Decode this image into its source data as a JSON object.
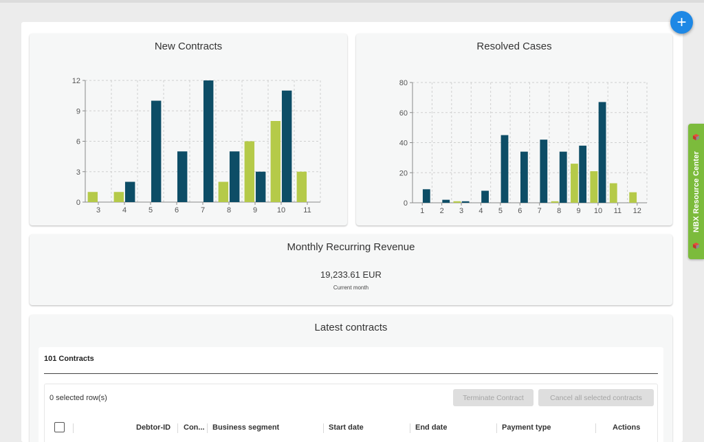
{
  "colors": {
    "dark_bar": "#0d4d66",
    "light_bar": "#b5ca49",
    "fab": "#1e88e5",
    "resource_tab": "#7cbb3c"
  },
  "fab": {
    "icon": "plus-icon",
    "symbol": "+"
  },
  "resource_center": {
    "label": "NBX Resource Center",
    "icon": "cube-icon"
  },
  "charts": [
    {
      "id": "new-contracts",
      "title": "New Contracts",
      "type": "bar",
      "x_ticks": [
        3,
        4,
        5,
        6,
        7,
        8,
        9,
        10,
        11
      ],
      "y_ticks": [
        0,
        3,
        6,
        9,
        12
      ],
      "ylim": [
        0,
        12
      ],
      "series": [
        {
          "color": "#b5ca49",
          "values": [
            1,
            1,
            0,
            0,
            0,
            2,
            6,
            8,
            3
          ]
        },
        {
          "color": "#0d4d66",
          "values": [
            0,
            2,
            10,
            5,
            12,
            5,
            3,
            11,
            0
          ]
        }
      ]
    },
    {
      "id": "resolved-cases",
      "title": "Resolved Cases",
      "type": "bar",
      "x_ticks": [
        1,
        2,
        3,
        4,
        5,
        6,
        7,
        8,
        9,
        10,
        11,
        12
      ],
      "y_ticks": [
        0,
        20,
        40,
        60,
        80
      ],
      "ylim": [
        0,
        80
      ],
      "series": [
        {
          "color": "#b5ca49",
          "values": [
            0,
            0,
            1,
            0,
            0,
            0,
            0,
            1,
            26,
            21,
            13,
            7
          ]
        },
        {
          "color": "#0d4d66",
          "values": [
            9,
            2,
            1,
            8,
            45,
            34,
            42,
            34,
            38,
            67,
            0,
            0
          ]
        }
      ]
    }
  ],
  "mrr": {
    "title": "Monthly Recurring Revenue",
    "value": "19,233.61 EUR",
    "caption": "Current month"
  },
  "latest_contracts": {
    "title": "Latest contracts",
    "count_label": "101 Contracts",
    "selected_label": "0 selected row(s)",
    "terminate_button": "Terminate Contract",
    "cancel_button": "Cancel all selected contracts",
    "columns": [
      "Debtor-ID",
      "Con...",
      "Business segment",
      "Start date",
      "End date",
      "Payment type",
      "Actions"
    ]
  }
}
